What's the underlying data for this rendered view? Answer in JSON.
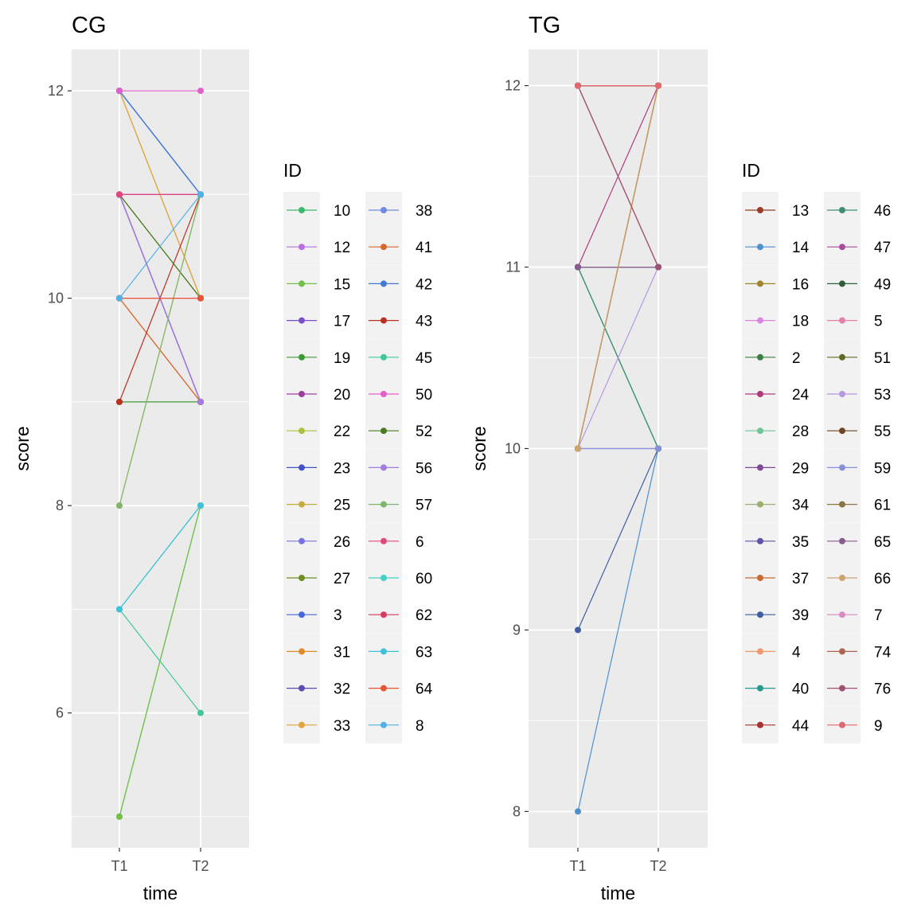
{
  "chart_data": [
    {
      "type": "line",
      "title": "CG",
      "xlabel": "time",
      "ylabel": "score",
      "x_categories": [
        "T1",
        "T2"
      ],
      "ylim": [
        4.7,
        12.4
      ],
      "y_ticks": [
        6,
        8,
        10,
        12
      ],
      "legend": {
        "title": "ID",
        "position": "right",
        "columns": 2
      },
      "series": [
        {
          "name": "10",
          "color": "#3DB96E",
          "values": [
            5,
            8
          ]
        },
        {
          "name": "12",
          "color": "#B96FE0",
          "values": [
            11,
            11
          ]
        },
        {
          "name": "15",
          "color": "#74C047",
          "values": [
            5,
            8
          ]
        },
        {
          "name": "17",
          "color": "#7A4FCB",
          "values": [
            11,
            9
          ]
        },
        {
          "name": "19",
          "color": "#3C9A36",
          "values": [
            9,
            9
          ]
        },
        {
          "name": "20",
          "color": "#9B3F9E",
          "values": [
            11,
            9
          ]
        },
        {
          "name": "22",
          "color": "#A9C13B",
          "values": [
            8,
            11
          ]
        },
        {
          "name": "23",
          "color": "#4453C4",
          "values": [
            12,
            11
          ]
        },
        {
          "name": "25",
          "color": "#C9AC3E",
          "values": [
            12,
            10
          ]
        },
        {
          "name": "26",
          "color": "#7A73E2",
          "values": [
            11,
            11
          ]
        },
        {
          "name": "27",
          "color": "#6D8E23",
          "values": [
            11,
            10
          ]
        },
        {
          "name": "3",
          "color": "#4369D8",
          "values": [
            12,
            11
          ]
        },
        {
          "name": "31",
          "color": "#E08A2A",
          "values": [
            10,
            9
          ]
        },
        {
          "name": "32",
          "color": "#5C4AAE",
          "values": [
            11,
            9
          ]
        },
        {
          "name": "33",
          "color": "#E0A53D",
          "values": [
            12,
            10
          ]
        },
        {
          "name": "38",
          "color": "#6E8CE0",
          "values": [
            12,
            11
          ]
        },
        {
          "name": "41",
          "color": "#D9662E",
          "values": [
            10,
            9
          ]
        },
        {
          "name": "42",
          "color": "#3F7AD6",
          "values": [
            12,
            11
          ]
        },
        {
          "name": "43",
          "color": "#B8321F",
          "values": [
            9,
            11
          ]
        },
        {
          "name": "45",
          "color": "#3FC99B",
          "values": [
            7,
            6
          ]
        },
        {
          "name": "50",
          "color": "#E260C9",
          "values": [
            12,
            12
          ]
        },
        {
          "name": "52",
          "color": "#4A7A22",
          "values": [
            11,
            10
          ]
        },
        {
          "name": "56",
          "color": "#A07DE0",
          "values": [
            11,
            9
          ]
        },
        {
          "name": "57",
          "color": "#7FB66A",
          "values": [
            8,
            11
          ]
        },
        {
          "name": "6",
          "color": "#E2467E",
          "values": [
            11,
            11
          ]
        },
        {
          "name": "60",
          "color": "#44D1C4",
          "values": [
            7,
            8
          ]
        },
        {
          "name": "62",
          "color": "#D63A5E",
          "values": [
            10,
            10
          ]
        },
        {
          "name": "63",
          "color": "#3FC1DA",
          "values": [
            7,
            8
          ]
        },
        {
          "name": "64",
          "color": "#E55537",
          "values": [
            10,
            10
          ]
        },
        {
          "name": "8",
          "color": "#50B2E6",
          "values": [
            10,
            11
          ]
        }
      ]
    },
    {
      "type": "line",
      "title": "TG",
      "xlabel": "time",
      "ylabel": "score",
      "x_categories": [
        "T1",
        "T2"
      ],
      "ylim": [
        7.8,
        12.2
      ],
      "y_ticks": [
        8,
        9,
        10,
        11,
        12
      ],
      "legend": {
        "title": "ID",
        "position": "right",
        "columns": 2
      },
      "series": [
        {
          "name": "13",
          "color": "#9B3D24",
          "values": [
            12,
            11
          ]
        },
        {
          "name": "14",
          "color": "#4F8FCE",
          "values": [
            8,
            10
          ]
        },
        {
          "name": "16",
          "color": "#A0852A",
          "values": [
            10,
            12
          ]
        },
        {
          "name": "18",
          "color": "#DA86E0",
          "values": [
            11,
            11
          ]
        },
        {
          "name": "2",
          "color": "#3D7F44",
          "values": [
            11,
            11
          ]
        },
        {
          "name": "24",
          "color": "#B03A7A",
          "values": [
            11,
            12
          ]
        },
        {
          "name": "28",
          "color": "#6FC495",
          "values": [
            11,
            10
          ]
        },
        {
          "name": "29",
          "color": "#7E4A98",
          "values": [
            11,
            11
          ]
        },
        {
          "name": "34",
          "color": "#9CAF6E",
          "values": [
            10,
            12
          ]
        },
        {
          "name": "35",
          "color": "#5D54A4",
          "values": [
            10,
            10
          ]
        },
        {
          "name": "37",
          "color": "#C76C32",
          "values": [
            10,
            12
          ]
        },
        {
          "name": "39",
          "color": "#3E5E9E",
          "values": [
            9,
            10
          ]
        },
        {
          "name": "4",
          "color": "#EE9A6A",
          "values": [
            10,
            12
          ]
        },
        {
          "name": "40",
          "color": "#239A8C",
          "values": [
            11,
            10
          ]
        },
        {
          "name": "44",
          "color": "#A8322F",
          "values": [
            12,
            12
          ]
        },
        {
          "name": "46",
          "color": "#3F8F6E",
          "values": [
            11,
            10
          ]
        },
        {
          "name": "47",
          "color": "#A94A9C",
          "values": [
            11,
            11
          ]
        },
        {
          "name": "49",
          "color": "#2F5E3C",
          "values": [
            11,
            11
          ]
        },
        {
          "name": "5",
          "color": "#E57FA8",
          "values": [
            12,
            12
          ]
        },
        {
          "name": "51",
          "color": "#5F6A25",
          "values": [
            10,
            12
          ]
        },
        {
          "name": "53",
          "color": "#B699E0",
          "values": [
            10,
            11
          ]
        },
        {
          "name": "55",
          "color": "#6E4524",
          "values": [
            12,
            12
          ]
        },
        {
          "name": "59",
          "color": "#8890D9",
          "values": [
            10,
            10
          ]
        },
        {
          "name": "61",
          "color": "#8E7240",
          "values": [
            10,
            12
          ]
        },
        {
          "name": "65",
          "color": "#8A5A92",
          "values": [
            11,
            11
          ]
        },
        {
          "name": "66",
          "color": "#CFA36E",
          "values": [
            10,
            12
          ]
        },
        {
          "name": "7",
          "color": "#D98BC2",
          "values": [
            12,
            11
          ]
        },
        {
          "name": "74",
          "color": "#B06553",
          "values": [
            12,
            12
          ]
        },
        {
          "name": "76",
          "color": "#9C5270",
          "values": [
            12,
            11
          ]
        },
        {
          "name": "9",
          "color": "#E06870",
          "values": [
            12,
            12
          ]
        }
      ]
    }
  ]
}
